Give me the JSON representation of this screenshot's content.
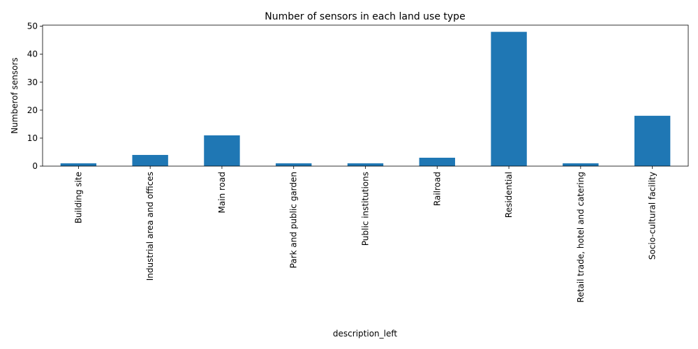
{
  "chart_data": {
    "type": "bar",
    "title": "Number of sensors in each land use type",
    "xlabel": "description_left",
    "ylabel": "Numberof sensors",
    "categories": [
      "Building site",
      "Industrial area and offices",
      "Main road",
      "Park and public garden",
      "Public institutions",
      "Railroad",
      "Residential",
      "Retail trade, hotel and catering",
      "Socio-cultural facility"
    ],
    "values": [
      1,
      4,
      11,
      1,
      1,
      3,
      48,
      1,
      18
    ],
    "ylim": [
      0,
      50.4
    ],
    "yticks": [
      0,
      10,
      20,
      30,
      40,
      50
    ],
    "grid": false,
    "legend": "none",
    "bar_color": "#1f77b4"
  }
}
